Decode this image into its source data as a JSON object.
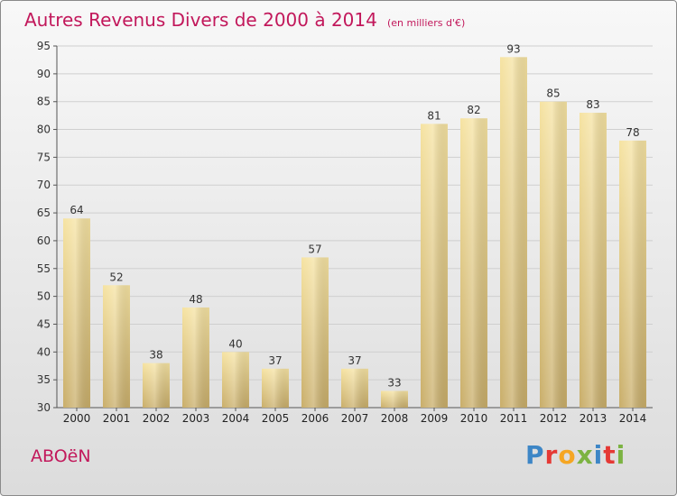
{
  "title": "Autres Revenus Divers de 2000 à 2014",
  "subtitle": "(en milliers d'€)",
  "place_name": "ABOëN",
  "brand": {
    "letters": [
      "P",
      "r",
      "o",
      "x",
      "i",
      "t",
      "i"
    ],
    "colors": [
      "#3d86c6",
      "#e53935",
      "#f5a623",
      "#7cb342",
      "#3d86c6",
      "#e53935",
      "#7cb342"
    ]
  },
  "colors": {
    "title": "#c2185b",
    "bar_light": "#f6e3a2",
    "bar_dark": "#c9ae6a"
  },
  "chart_data": {
    "type": "bar",
    "categories": [
      "2000",
      "2001",
      "2002",
      "2003",
      "2004",
      "2005",
      "2006",
      "2007",
      "2008",
      "2009",
      "2010",
      "2011",
      "2012",
      "2013",
      "2014"
    ],
    "values": [
      64,
      52,
      38,
      48,
      40,
      37,
      57,
      37,
      33,
      81,
      82,
      93,
      85,
      83,
      78
    ],
    "ylim": [
      30,
      95
    ],
    "yticks": [
      30,
      35,
      40,
      45,
      50,
      55,
      60,
      65,
      70,
      75,
      80,
      85,
      90,
      95
    ],
    "grid": true,
    "title": "Autres Revenus Divers de 2000 à 2014",
    "xlabel": "",
    "ylabel": ""
  }
}
